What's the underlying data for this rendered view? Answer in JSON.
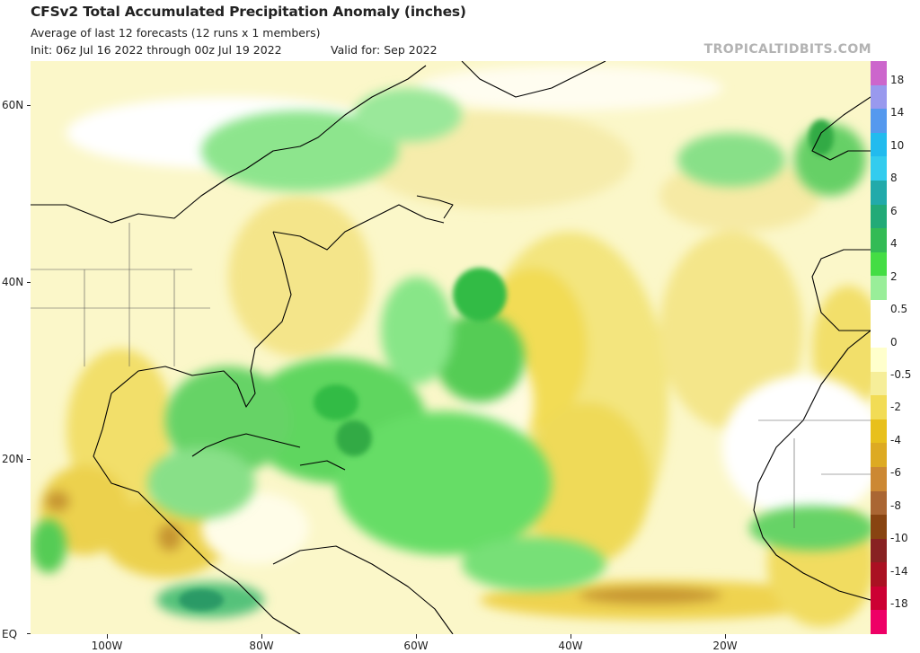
{
  "header": {
    "title": "CFSv2 Total Accumulated Precipitation Anomaly (inches)",
    "subtitle": "Average of last 12 forecasts (12 runs x 1 members)",
    "init": "Init: 06z Jul 16 2022 through 00z Jul 19 2022",
    "valid": "Valid for: Sep 2022",
    "brand": "TROPICALTIDBITS.COM"
  },
  "map": {
    "region": "North Atlantic basin",
    "lat_labels": [
      "60N",
      "40N",
      "20N",
      "EQ"
    ],
    "lon_labels": [
      "100W",
      "80W",
      "60W",
      "40W",
      "20W"
    ]
  },
  "colorbar": {
    "labels": [
      "18",
      "14",
      "10",
      "8",
      "6",
      "4",
      "2",
      "0.5",
      "0",
      "-0.5",
      "-2",
      "-4",
      "-6",
      "-8",
      "-10",
      "-14",
      "-18"
    ],
    "colors": [
      "#cc66cc",
      "#9999ee",
      "#5599ee",
      "#22bbee",
      "#33ccee",
      "#22aaaa",
      "#22aa77",
      "#33bb55",
      "#44dd44",
      "#99ee99",
      "#ffffff",
      "#ffffff",
      "#ffffcc",
      "#f6ee99",
      "#f2dc55",
      "#e8c01c",
      "#ddaa22",
      "#cc8833",
      "#aa6633",
      "#884411",
      "#882222",
      "#aa1122",
      "#cc0033",
      "#ee0066"
    ]
  }
}
